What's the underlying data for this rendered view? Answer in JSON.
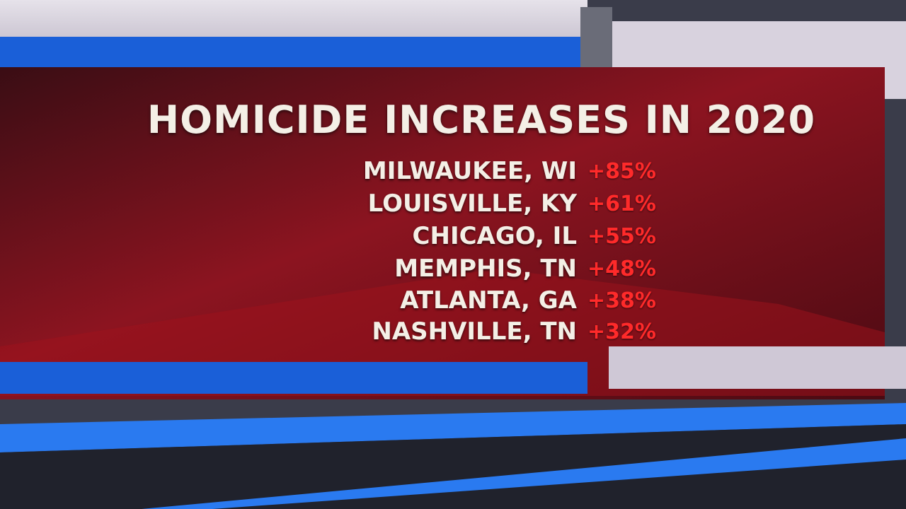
{
  "graphic": {
    "title": "HOMICIDE INCREASES IN 2020",
    "rows": [
      {
        "city": "MILWAUKEE, WI",
        "change": "+85%"
      },
      {
        "city": "LOUISVILLE, KY",
        "change": "+61%"
      },
      {
        "city": "CHICAGO, IL",
        "change": "+55%"
      },
      {
        "city": "MEMPHIS, TN",
        "change": "+48%"
      },
      {
        "city": "ATLANTA, GA",
        "change": "+38%"
      },
      {
        "city": "NASHVILLE, TN",
        "change": "+32%"
      }
    ]
  }
}
